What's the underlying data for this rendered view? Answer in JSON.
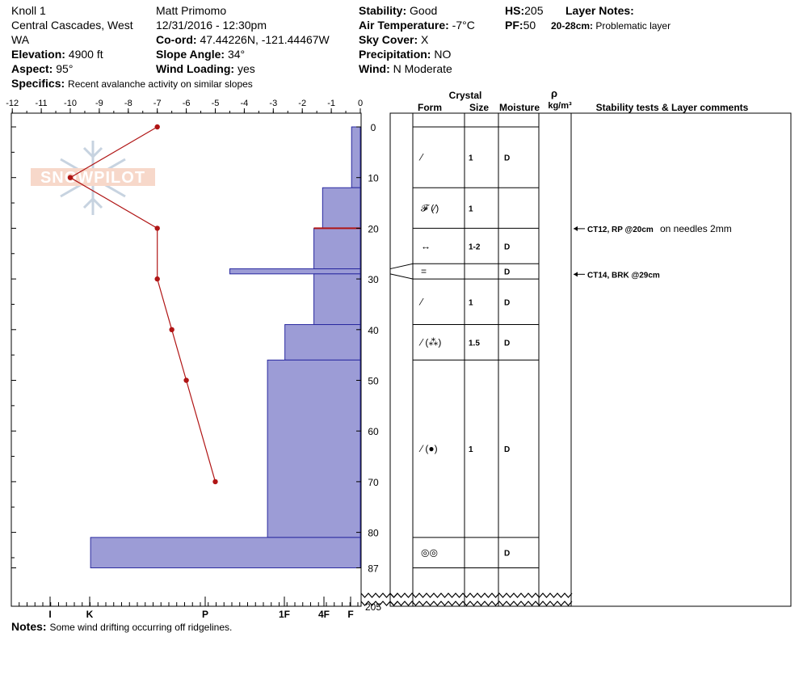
{
  "header": {
    "location_name": "Knoll 1",
    "region_line1": "Central Cascades, West",
    "region_line2": "WA",
    "elevation_label": "Elevation:",
    "elevation": "4900 ft",
    "aspect_label": "Aspect:",
    "aspect": "95°",
    "observer": "Matt Primomo",
    "datetime": "12/31/2016 - 12:30pm",
    "coord_label": "Co-ord:",
    "coord": "47.44226N, -121.44467W",
    "slope_label": "Slope Angle:",
    "slope": "34°",
    "wind_loading_label": "Wind Loading:",
    "wind_loading": "yes",
    "stability_label": "Stability:",
    "stability": "Good",
    "air_temp_label": "Air Temperature:",
    "air_temp": "-7°C",
    "sky_label": "Sky Cover:",
    "sky": "X",
    "precip_label": "Precipitation:",
    "precip": "NO",
    "wind_label": "Wind:",
    "wind": "N Moderate",
    "hs_label": "HS:",
    "hs": "205",
    "pf_label": "PF:",
    "pf": "50",
    "layer_notes_label": "Layer Notes:",
    "layer_note_depth": "20-28cm:",
    "layer_note_text": "Problematic layer",
    "specifics_label": "Specifics:",
    "specifics": "Recent avalanche activity on similar slopes",
    "notes_label": "Notes:",
    "notes": "Some wind drifting occurring off ridgelines."
  },
  "logo_text": "SNOWPILOT",
  "columns": {
    "crystal": "Crystal",
    "form": "Form",
    "size": "Size",
    "moisture": "Moisture",
    "rho": "ρ",
    "density_unit": "kg/m³",
    "stability_tests": "Stability tests & Layer comments"
  },
  "chart_data": {
    "type": "snow-profile",
    "temperature_axis": {
      "ticks": [
        -12,
        -11,
        -10,
        -9,
        -8,
        -7,
        -6,
        -5,
        -4,
        -3,
        -2,
        -1,
        0
      ],
      "range": [
        -12,
        0
      ]
    },
    "depth_axis": {
      "ticks": [
        0,
        10,
        20,
        30,
        40,
        50,
        60,
        70,
        80,
        87,
        205
      ],
      "range_shown": [
        0,
        87
      ],
      "total_depth": 205
    },
    "hardness_axis": {
      "labels": [
        "I",
        "K",
        "P",
        "1F",
        "4F",
        "F"
      ]
    },
    "temperature_profile": [
      {
        "depth": 0,
        "temp": -7
      },
      {
        "depth": 10,
        "temp": -10
      },
      {
        "depth": 20,
        "temp": -7
      },
      {
        "depth": 30,
        "temp": -7
      },
      {
        "depth": 40,
        "temp": -6.5
      },
      {
        "depth": 50,
        "temp": -6
      },
      {
        "depth": 70,
        "temp": -5
      }
    ],
    "hardness_profile": [
      {
        "top": 0,
        "bottom": 12,
        "temp_axis_value": -0.3
      },
      {
        "top": 12,
        "bottom": 20,
        "temp_axis_value": -1.3
      },
      {
        "top": 20,
        "bottom": 28,
        "temp_axis_value": -1.6
      },
      {
        "top": 28,
        "bottom": 29,
        "temp_axis_value": -4.5
      },
      {
        "top": 29,
        "bottom": 39,
        "temp_axis_value": -1.6
      },
      {
        "top": 39,
        "bottom": 46,
        "temp_axis_value": -2.6
      },
      {
        "top": 46,
        "bottom": 81,
        "temp_axis_value": -3.2
      },
      {
        "top": 81,
        "bottom": 87,
        "temp_axis_value": -9.3
      }
    ],
    "layers": [
      {
        "top": 0,
        "bottom": 12,
        "form": "⁄",
        "size": "1",
        "moisture": "D"
      },
      {
        "top": 12,
        "bottom": 20,
        "form": "𝓕 (⁄)",
        "size": "1",
        "moisture": ""
      },
      {
        "top": 20,
        "bottom": 27,
        "form": "↔",
        "size": "1-2",
        "moisture": "D"
      },
      {
        "top": 27,
        "bottom": 30,
        "form": "=",
        "size": "",
        "moisture": "D"
      },
      {
        "top": 30,
        "bottom": 39,
        "form": "⁄",
        "size": "1",
        "moisture": "D"
      },
      {
        "top": 39,
        "bottom": 46,
        "form": "⁄ (⁂)",
        "size": "1.5",
        "moisture": "D"
      },
      {
        "top": 46,
        "bottom": 81,
        "form": "⁄ (●)",
        "size": "1",
        "moisture": "D"
      },
      {
        "top": 81,
        "bottom": 87,
        "form": "◎◎",
        "size": "",
        "moisture": "D"
      }
    ],
    "stability_tests": [
      {
        "depth": 20,
        "label": "CT12, RP @20cm",
        "comment": "on needles 2mm"
      },
      {
        "depth": 29,
        "label": "CT14, BRK @29cm",
        "comment": ""
      }
    ],
    "weak_layer_line_depth": 20,
    "colors": {
      "hardness_fill": "#9c9cd6",
      "hardness_stroke": "#2a2aa0",
      "temperature": "#b01515",
      "weak_layer": "#b01515"
    }
  }
}
